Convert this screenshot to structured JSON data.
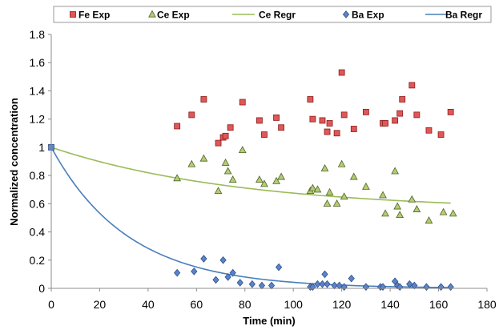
{
  "chart_data": {
    "type": "scatter",
    "xlabel": "Time (min)",
    "ylabel": "Normalized concentration",
    "xlim": [
      0,
      180
    ],
    "ylim": [
      0,
      1.8
    ],
    "xticks": [
      0,
      20,
      40,
      60,
      80,
      100,
      120,
      140,
      160,
      180
    ],
    "yticks": [
      0,
      0.2,
      0.4,
      0.6,
      0.8,
      1,
      1.2,
      1.4,
      1.6,
      1.8
    ],
    "xtick_labels": [
      "0",
      "20",
      "40",
      "60",
      "80",
      "100",
      "120",
      "140",
      "160",
      "180"
    ],
    "ytick_labels": [
      "0",
      "0.2",
      "0.4",
      "0.6",
      "0.8",
      "1",
      "1.2",
      "1.4",
      "1.6",
      "1.8"
    ],
    "grid": false,
    "legend_position": "top",
    "origin_point": {
      "x": 0,
      "y": 1
    },
    "series": [
      {
        "name": "Fe Exp",
        "kind": "scatter",
        "marker": "square",
        "color": "#e05757",
        "stroke": "#8b1a1a",
        "x": [
          52,
          58,
          63,
          69,
          71,
          72,
          74,
          79,
          86,
          88,
          93,
          95,
          107,
          108,
          112,
          114,
          115,
          118,
          120,
          121,
          125,
          130,
          137,
          138,
          142,
          144,
          145,
          149,
          151,
          156,
          161,
          165
        ],
        "y": [
          1.15,
          1.23,
          1.34,
          1.03,
          1.07,
          1.08,
          1.14,
          1.32,
          1.19,
          1.09,
          1.21,
          1.14,
          1.34,
          1.2,
          1.19,
          1.11,
          1.17,
          1.1,
          1.53,
          1.23,
          1.13,
          1.25,
          1.17,
          1.17,
          1.19,
          1.24,
          1.34,
          1.44,
          1.23,
          1.12,
          1.09,
          1.25
        ]
      },
      {
        "name": "Ce Exp",
        "kind": "scatter",
        "marker": "triangle",
        "color": "#b5cc73",
        "stroke": "#4f6228",
        "x": [
          52,
          58,
          63,
          69,
          72,
          73,
          75,
          79,
          86,
          88,
          93,
          95,
          107,
          108,
          110,
          113,
          114,
          115,
          118,
          120,
          121,
          125,
          130,
          137,
          138,
          142,
          143,
          144,
          149,
          151,
          156,
          162,
          166
        ],
        "y": [
          0.78,
          0.88,
          0.92,
          0.69,
          0.89,
          0.83,
          0.77,
          0.98,
          0.77,
          0.74,
          0.76,
          0.79,
          0.69,
          0.71,
          0.7,
          0.85,
          0.6,
          0.68,
          0.6,
          0.88,
          0.65,
          0.79,
          0.72,
          0.66,
          0.53,
          0.83,
          0.58,
          0.52,
          0.63,
          0.56,
          0.48,
          0.54,
          0.53
        ]
      },
      {
        "name": "Ce Regr",
        "kind": "line",
        "color": "#9bbb59",
        "model": "exp_decay",
        "y0": 1.0,
        "y_inf": 0.55,
        "rate": 0.0128,
        "x_range": [
          0,
          165
        ]
      },
      {
        "name": "Ba Exp",
        "kind": "scatter",
        "marker": "diamond",
        "color": "#5b84c8",
        "stroke": "#2f4f8c",
        "x": [
          52,
          59,
          63,
          68,
          71,
          73,
          75,
          78,
          83,
          87,
          91,
          94,
          107,
          108,
          110,
          112,
          113,
          114,
          117,
          119,
          121,
          124,
          130,
          136,
          137,
          142,
          143,
          144,
          148,
          150,
          155,
          161,
          165
        ],
        "y": [
          0.11,
          0.12,
          0.21,
          0.06,
          0.2,
          0.08,
          0.11,
          0.04,
          0.03,
          0.02,
          0.02,
          0.15,
          0.01,
          0.01,
          0.03,
          0.03,
          0.1,
          0.03,
          0.02,
          0.02,
          0.01,
          0.07,
          0.01,
          0.01,
          0.01,
          0.05,
          0.02,
          0.01,
          0.03,
          0.02,
          0.01,
          0.01,
          0.01
        ]
      },
      {
        "name": "Ba Regr",
        "kind": "line",
        "color": "#4a7ebb",
        "model": "exp_decay",
        "y0": 1.0,
        "y_inf": 0.0,
        "rate": 0.0315,
        "x_range": [
          0,
          165
        ]
      }
    ]
  }
}
